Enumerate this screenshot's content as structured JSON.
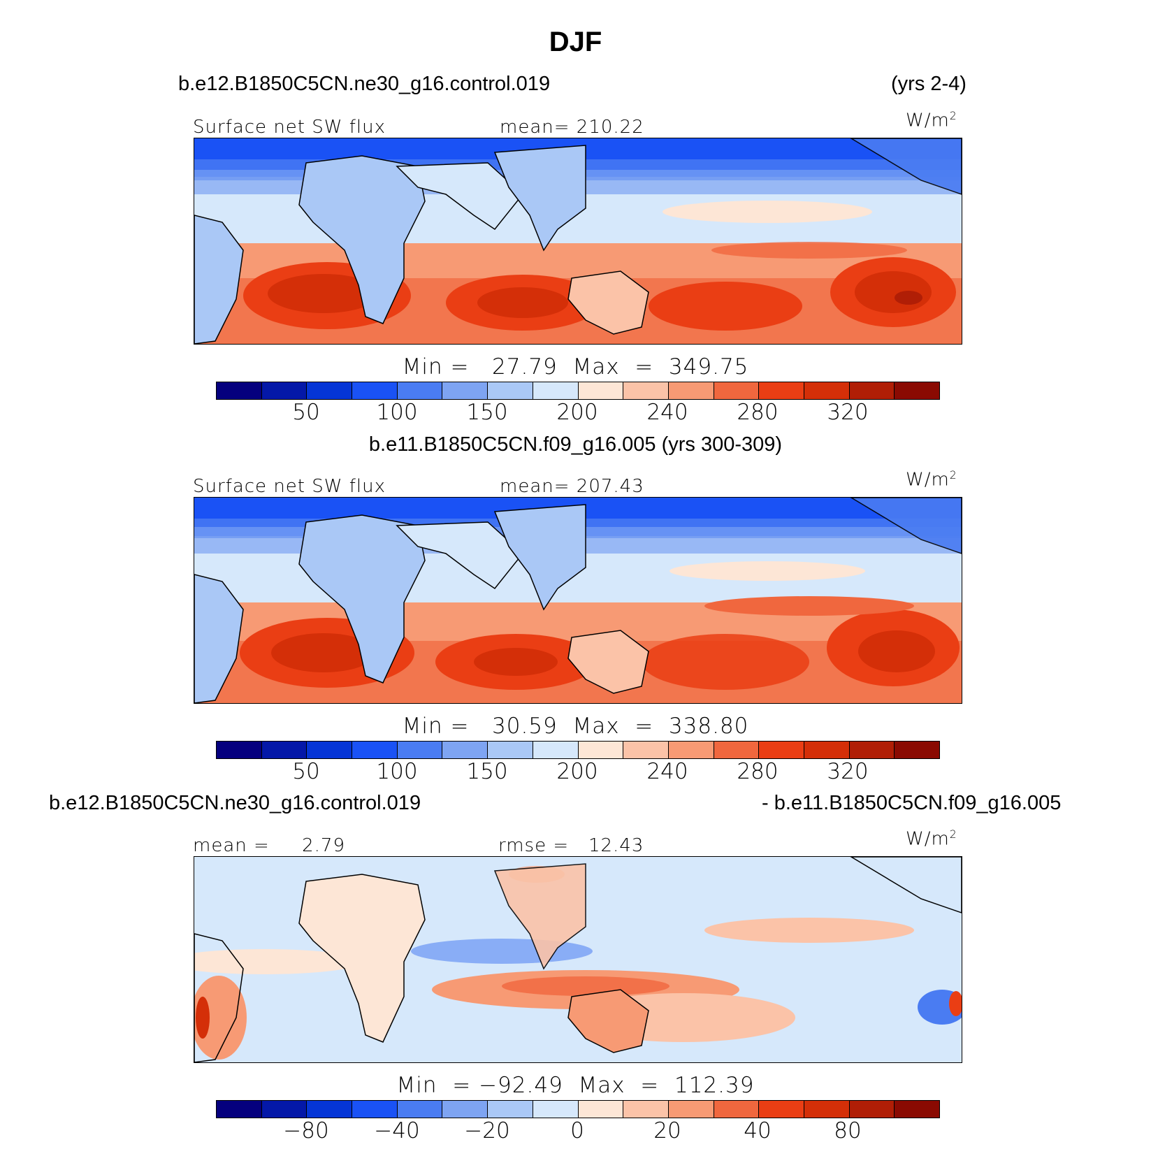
{
  "figure": {
    "season_title": "DJF",
    "case1_name": "b.e12.B1850C5CN.ne30_g16.control.019",
    "case1_years": "(yrs 2-4)",
    "case2_label": "b.e11.B1850C5CN.f09_g16.005 (yrs 300-309)",
    "diff_case_left": "b.e12.B1850C5CN.ne30_g16.control.019",
    "diff_case_right": "- b.e11.B1850C5CN.f09_g16.005"
  },
  "panels": [
    {
      "variable": "Surface net SW flux",
      "stat_left": "mean= 210.22",
      "units": "W/m",
      "units_exp": "2",
      "minmax": "Min =   27.79  Max  =  349.75",
      "ticks": [
        "50",
        "100",
        "150",
        "200",
        "240",
        "280",
        "320"
      ]
    },
    {
      "variable": "Surface net SW flux",
      "stat_left": "mean= 207.43",
      "units": "W/m",
      "units_exp": "2",
      "minmax": "Min =   30.59  Max  =  338.80",
      "ticks": [
        "50",
        "100",
        "150",
        "200",
        "240",
        "280",
        "320"
      ]
    },
    {
      "stat_a": "mean =     2.79",
      "stat_b": "rmse =   12.43",
      "units": "W/m",
      "units_exp": "2",
      "minmax": "Min  = −92.49  Max  =  112.39",
      "ticks": [
        "−80",
        "−40",
        "−20",
        "0",
        "20",
        "40",
        "80"
      ]
    }
  ],
  "colorbar_colors": [
    "#05007e",
    "#0418a8",
    "#0535d6",
    "#1a52f5",
    "#4a7cf2",
    "#7ea4f2",
    "#aac8f6",
    "#d6e8fb",
    "#fde6d6",
    "#fbc3a8",
    "#f79a74",
    "#f0673e",
    "#ea3e14",
    "#d42f08",
    "#b01e06",
    "#8a0a02"
  ],
  "chart_data": {
    "type": "heatmap",
    "description_fields": [
      "lat-lon filled contour maps, 3 panels"
    ],
    "panel_value_ranges": [
      {
        "min": 27.79,
        "max": 349.75,
        "mean": 210.22
      },
      {
        "min": 30.59,
        "max": 338.8,
        "mean": 207.43
      },
      {
        "min": -92.49,
        "max": 112.39,
        "mean": 2.79,
        "rmse": 12.43
      }
    ]
  }
}
